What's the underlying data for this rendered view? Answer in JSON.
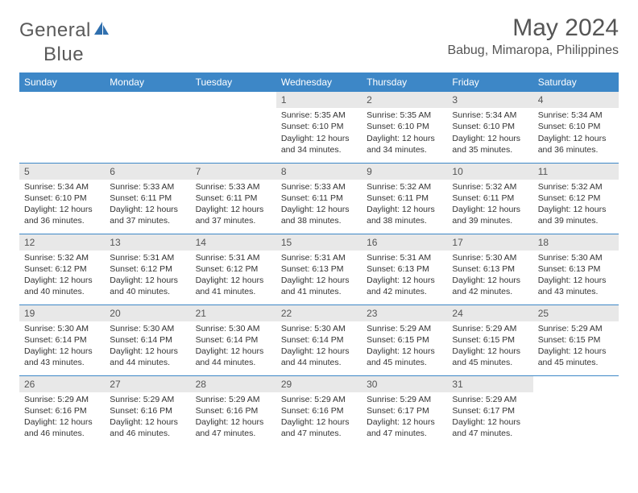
{
  "brand": {
    "text1": "General",
    "text2": "Blue"
  },
  "title": "May 2024",
  "location": "Babug, Mimaropa, Philippines",
  "colors": {
    "header_bg": "#3d87c7",
    "header_text": "#ffffff",
    "daynum_bg": "#e8e8e8",
    "border": "#3d87c7",
    "text": "#333333",
    "title_text": "#555555"
  },
  "fonts": {
    "body_size": 10.5,
    "daynum_size": 12,
    "header_size": 12,
    "title_size": 30,
    "location_size": 16
  },
  "weekdays": [
    "Sunday",
    "Monday",
    "Tuesday",
    "Wednesday",
    "Thursday",
    "Friday",
    "Saturday"
  ],
  "weeks": [
    [
      {
        "empty": true
      },
      {
        "empty": true
      },
      {
        "empty": true
      },
      {
        "day": 1,
        "sunrise": "5:35 AM",
        "sunset": "6:10 PM",
        "daylight": "12 hours and 34 minutes."
      },
      {
        "day": 2,
        "sunrise": "5:35 AM",
        "sunset": "6:10 PM",
        "daylight": "12 hours and 34 minutes."
      },
      {
        "day": 3,
        "sunrise": "5:34 AM",
        "sunset": "6:10 PM",
        "daylight": "12 hours and 35 minutes."
      },
      {
        "day": 4,
        "sunrise": "5:34 AM",
        "sunset": "6:10 PM",
        "daylight": "12 hours and 36 minutes."
      }
    ],
    [
      {
        "day": 5,
        "sunrise": "5:34 AM",
        "sunset": "6:10 PM",
        "daylight": "12 hours and 36 minutes."
      },
      {
        "day": 6,
        "sunrise": "5:33 AM",
        "sunset": "6:11 PM",
        "daylight": "12 hours and 37 minutes."
      },
      {
        "day": 7,
        "sunrise": "5:33 AM",
        "sunset": "6:11 PM",
        "daylight": "12 hours and 37 minutes."
      },
      {
        "day": 8,
        "sunrise": "5:33 AM",
        "sunset": "6:11 PM",
        "daylight": "12 hours and 38 minutes."
      },
      {
        "day": 9,
        "sunrise": "5:32 AM",
        "sunset": "6:11 PM",
        "daylight": "12 hours and 38 minutes."
      },
      {
        "day": 10,
        "sunrise": "5:32 AM",
        "sunset": "6:11 PM",
        "daylight": "12 hours and 39 minutes."
      },
      {
        "day": 11,
        "sunrise": "5:32 AM",
        "sunset": "6:12 PM",
        "daylight": "12 hours and 39 minutes."
      }
    ],
    [
      {
        "day": 12,
        "sunrise": "5:32 AM",
        "sunset": "6:12 PM",
        "daylight": "12 hours and 40 minutes."
      },
      {
        "day": 13,
        "sunrise": "5:31 AM",
        "sunset": "6:12 PM",
        "daylight": "12 hours and 40 minutes."
      },
      {
        "day": 14,
        "sunrise": "5:31 AM",
        "sunset": "6:12 PM",
        "daylight": "12 hours and 41 minutes."
      },
      {
        "day": 15,
        "sunrise": "5:31 AM",
        "sunset": "6:13 PM",
        "daylight": "12 hours and 41 minutes."
      },
      {
        "day": 16,
        "sunrise": "5:31 AM",
        "sunset": "6:13 PM",
        "daylight": "12 hours and 42 minutes."
      },
      {
        "day": 17,
        "sunrise": "5:30 AM",
        "sunset": "6:13 PM",
        "daylight": "12 hours and 42 minutes."
      },
      {
        "day": 18,
        "sunrise": "5:30 AM",
        "sunset": "6:13 PM",
        "daylight": "12 hours and 43 minutes."
      }
    ],
    [
      {
        "day": 19,
        "sunrise": "5:30 AM",
        "sunset": "6:14 PM",
        "daylight": "12 hours and 43 minutes."
      },
      {
        "day": 20,
        "sunrise": "5:30 AM",
        "sunset": "6:14 PM",
        "daylight": "12 hours and 44 minutes."
      },
      {
        "day": 21,
        "sunrise": "5:30 AM",
        "sunset": "6:14 PM",
        "daylight": "12 hours and 44 minutes."
      },
      {
        "day": 22,
        "sunrise": "5:30 AM",
        "sunset": "6:14 PM",
        "daylight": "12 hours and 44 minutes."
      },
      {
        "day": 23,
        "sunrise": "5:29 AM",
        "sunset": "6:15 PM",
        "daylight": "12 hours and 45 minutes."
      },
      {
        "day": 24,
        "sunrise": "5:29 AM",
        "sunset": "6:15 PM",
        "daylight": "12 hours and 45 minutes."
      },
      {
        "day": 25,
        "sunrise": "5:29 AM",
        "sunset": "6:15 PM",
        "daylight": "12 hours and 45 minutes."
      }
    ],
    [
      {
        "day": 26,
        "sunrise": "5:29 AM",
        "sunset": "6:16 PM",
        "daylight": "12 hours and 46 minutes."
      },
      {
        "day": 27,
        "sunrise": "5:29 AM",
        "sunset": "6:16 PM",
        "daylight": "12 hours and 46 minutes."
      },
      {
        "day": 28,
        "sunrise": "5:29 AM",
        "sunset": "6:16 PM",
        "daylight": "12 hours and 47 minutes."
      },
      {
        "day": 29,
        "sunrise": "5:29 AM",
        "sunset": "6:16 PM",
        "daylight": "12 hours and 47 minutes."
      },
      {
        "day": 30,
        "sunrise": "5:29 AM",
        "sunset": "6:17 PM",
        "daylight": "12 hours and 47 minutes."
      },
      {
        "day": 31,
        "sunrise": "5:29 AM",
        "sunset": "6:17 PM",
        "daylight": "12 hours and 47 minutes."
      },
      {
        "empty": true
      }
    ]
  ]
}
